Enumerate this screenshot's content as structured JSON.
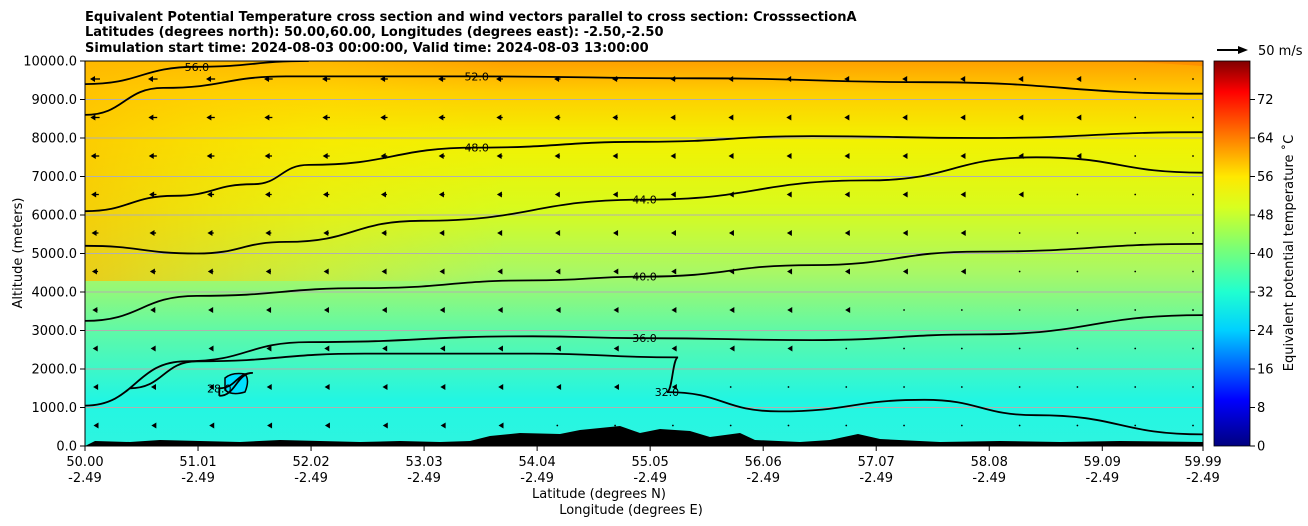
{
  "chart_data": {
    "type": "heatmap",
    "title": [
      "Equivalent Potential Temperature cross section and wind vectors parallel to cross section: CrosssectionA",
      "Latitudes (degrees north): 50.00,60.00, Longitudes (degrees east): -2.50,-2.50",
      "Simulation start time: 2024-08-03 00:00:00, Valid time: 2024-08-03 13:00:00"
    ],
    "ylabel": "Altitude (meters)",
    "xlabel": "Latitude (degrees N)",
    "xlabel2": "Longitude (degrees E)",
    "ylim": [
      0,
      10000
    ],
    "yticks": [
      "0.0",
      "1000.0",
      "2000.0",
      "3000.0",
      "4000.0",
      "5000.0",
      "6000.0",
      "7000.0",
      "8000.0",
      "9000.0",
      "10000.0"
    ],
    "xticks_lat": [
      "50.00",
      "51.01",
      "52.02",
      "53.03",
      "54.04",
      "55.05",
      "56.06",
      "57.07",
      "58.08",
      "59.09",
      "59.99"
    ],
    "xticks_lon": [
      "-2.49",
      "-2.49",
      "-2.49",
      "-2.49",
      "-2.49",
      "-2.49",
      "-2.49",
      "-2.49",
      "-2.49",
      "-2.49",
      "-2.49"
    ],
    "colorbar": {
      "label": "Equivalent potential temperature ˚C",
      "range": [
        0,
        80
      ],
      "ticks": [
        "0",
        "8",
        "16",
        "24",
        "32",
        "40",
        "48",
        "56",
        "64",
        "72"
      ]
    },
    "wind_key": "50 m/s",
    "contour_labels": [
      "56.0",
      "52.0",
      "48.0",
      "44.0",
      "40.0",
      "36.0",
      "32.0",
      "28.0"
    ],
    "contour_levels": [
      {
        "level": "56.0",
        "label": "56.0",
        "points": [
          [
            50.0,
            9400
          ],
          [
            51.0,
            9850
          ],
          [
            52.0,
            10000
          ]
        ]
      },
      {
        "level": "52.0",
        "label": "52.0",
        "points": [
          [
            50.0,
            8600
          ],
          [
            50.7,
            9300
          ],
          [
            51.8,
            9600
          ],
          [
            53.5,
            9600
          ],
          [
            55.5,
            9550
          ],
          [
            57.5,
            9450
          ],
          [
            59.99,
            9150
          ]
        ]
      },
      {
        "level": "48.0",
        "label": "48.0",
        "points": [
          [
            50.0,
            6100
          ],
          [
            50.8,
            6500
          ],
          [
            51.5,
            6800
          ],
          [
            52.0,
            7300
          ],
          [
            53.5,
            7750
          ],
          [
            55.0,
            7900
          ],
          [
            56.5,
            8050
          ],
          [
            58.0,
            8000
          ],
          [
            59.99,
            8150
          ]
        ]
      },
      {
        "level": "44.0",
        "label": "44.0",
        "points": [
          [
            50.0,
            5200
          ],
          [
            51.0,
            5000
          ],
          [
            51.8,
            5300
          ],
          [
            53.0,
            5850
          ],
          [
            55.0,
            6400
          ],
          [
            57.0,
            6900
          ],
          [
            58.5,
            7500
          ],
          [
            59.99,
            7100
          ]
        ]
      },
      {
        "level": "40.0",
        "label": "40.0",
        "points": [
          [
            50.0,
            3250
          ],
          [
            51.0,
            3900
          ],
          [
            52.5,
            4100
          ],
          [
            54.0,
            4300
          ],
          [
            55.0,
            4400
          ],
          [
            56.5,
            4700
          ],
          [
            58.0,
            5050
          ],
          [
            59.99,
            5250
          ]
        ]
      },
      {
        "level": "36.0",
        "label": "36.0",
        "points": [
          [
            50.0,
            1050
          ],
          [
            50.9,
            2200
          ],
          [
            52.0,
            2700
          ],
          [
            54.0,
            2850
          ],
          [
            55.0,
            2800
          ],
          [
            56.5,
            2750
          ],
          [
            58.0,
            2900
          ],
          [
            59.99,
            3400
          ]
        ]
      },
      {
        "level": "32.0",
        "label": "32.0",
        "points": [
          [
            50.4,
            1500
          ],
          [
            51.0,
            2200
          ],
          [
            52.5,
            2400
          ],
          [
            54.0,
            2400
          ],
          [
            55.3,
            2300
          ],
          [
            55.2,
            1400
          ],
          [
            56.2,
            900
          ],
          [
            57.5,
            1200
          ],
          [
            58.5,
            800
          ],
          [
            59.99,
            300
          ]
        ]
      },
      {
        "level": "28.0",
        "label": "28.0",
        "points": [
          [
            51.2,
            1300
          ],
          [
            51.5,
            1900
          ],
          [
            51.2,
            1500
          ],
          [
            51.2,
            1300
          ]
        ]
      }
    ]
  }
}
